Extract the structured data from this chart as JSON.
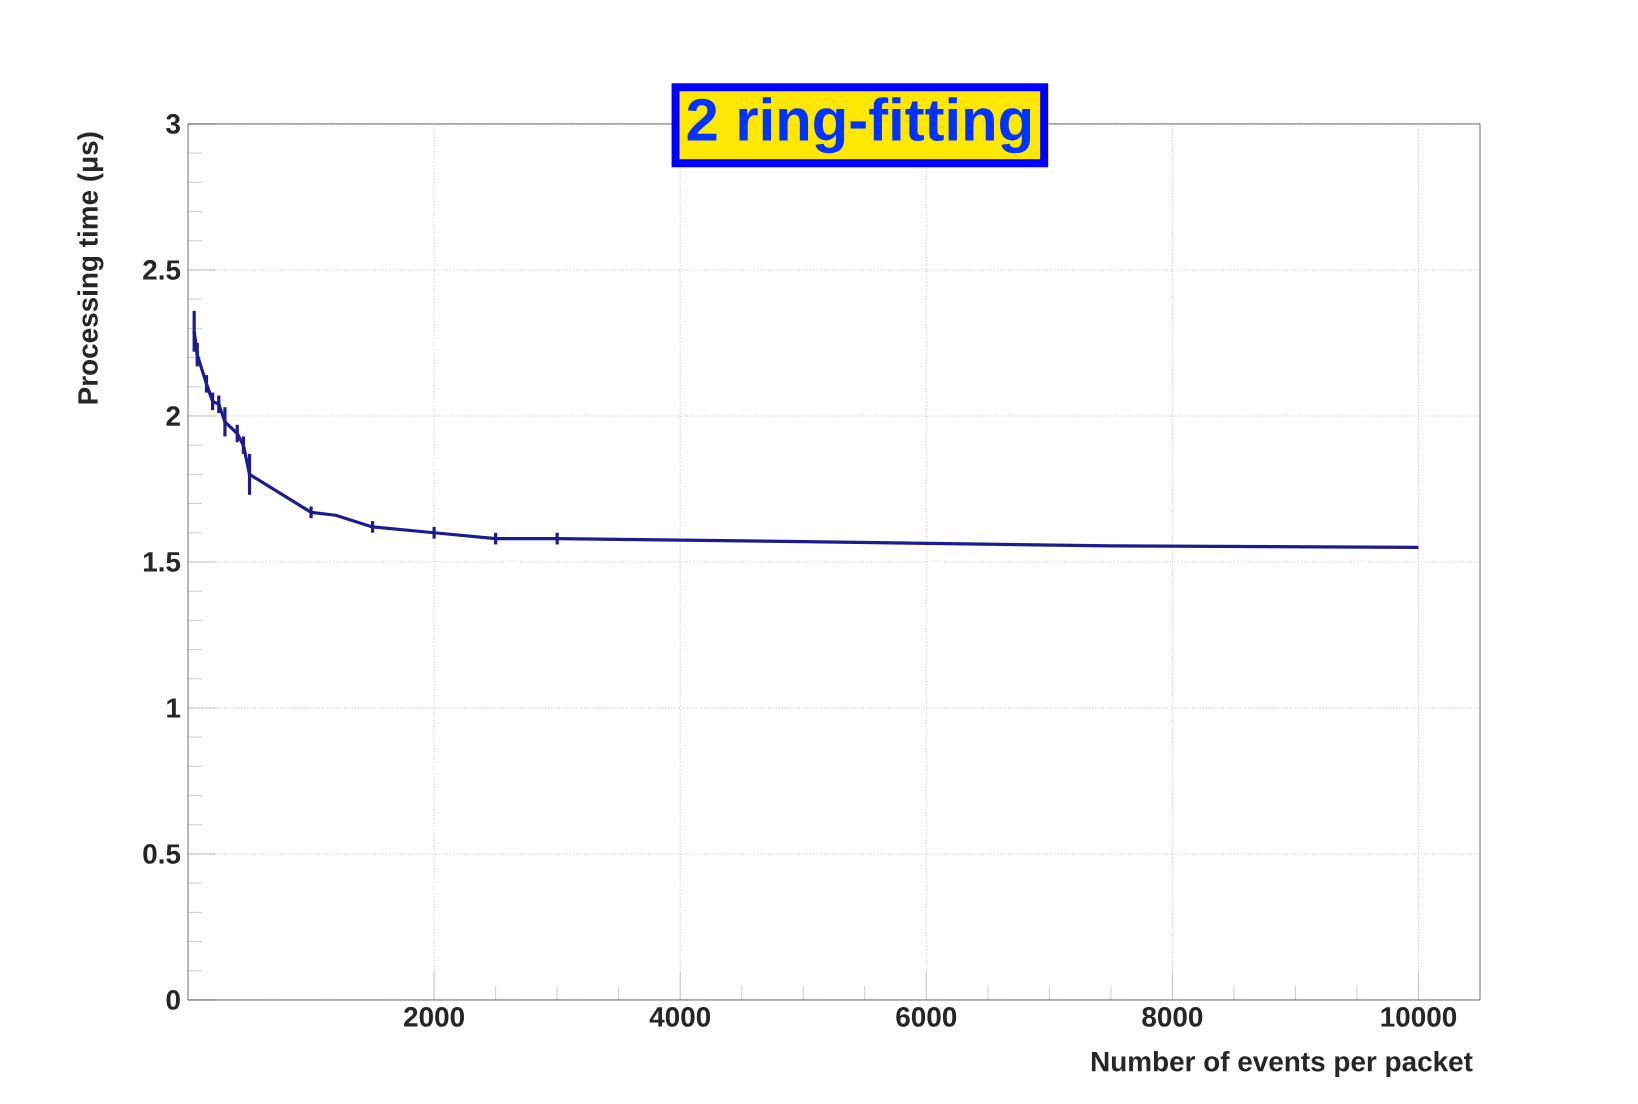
{
  "chart_data": {
    "type": "line",
    "title": "2 ring-fitting",
    "xlabel": "Number of events per packet",
    "ylabel": "Processing time (μs)",
    "x": [
      50,
      75,
      150,
      200,
      250,
      300,
      400,
      450,
      500,
      1000,
      1200,
      1500,
      2000,
      2500,
      3000,
      5000,
      7500,
      10000
    ],
    "series": [
      {
        "color": "#1c1c8e",
        "values": [
          2.29,
          2.21,
          2.11,
          2.05,
          2.04,
          1.98,
          1.94,
          1.9,
          1.8,
          1.67,
          1.66,
          1.62,
          1.6,
          1.58,
          1.58,
          1.57,
          1.555,
          1.55
        ],
        "errors": [
          0.07,
          0.04,
          0.03,
          0.03,
          0.03,
          0.05,
          0.03,
          0.03,
          0.07,
          0.02,
          null,
          0.02,
          0.02,
          0.02,
          0.02,
          null,
          null,
          null
        ]
      }
    ],
    "xlim": [
      0,
      10500
    ],
    "ylim": [
      0,
      3
    ],
    "xticks": [
      2000,
      4000,
      6000,
      8000,
      10000
    ],
    "yticks": [
      0,
      0.5,
      1,
      1.5,
      2,
      2.5,
      3
    ],
    "grid": true
  }
}
